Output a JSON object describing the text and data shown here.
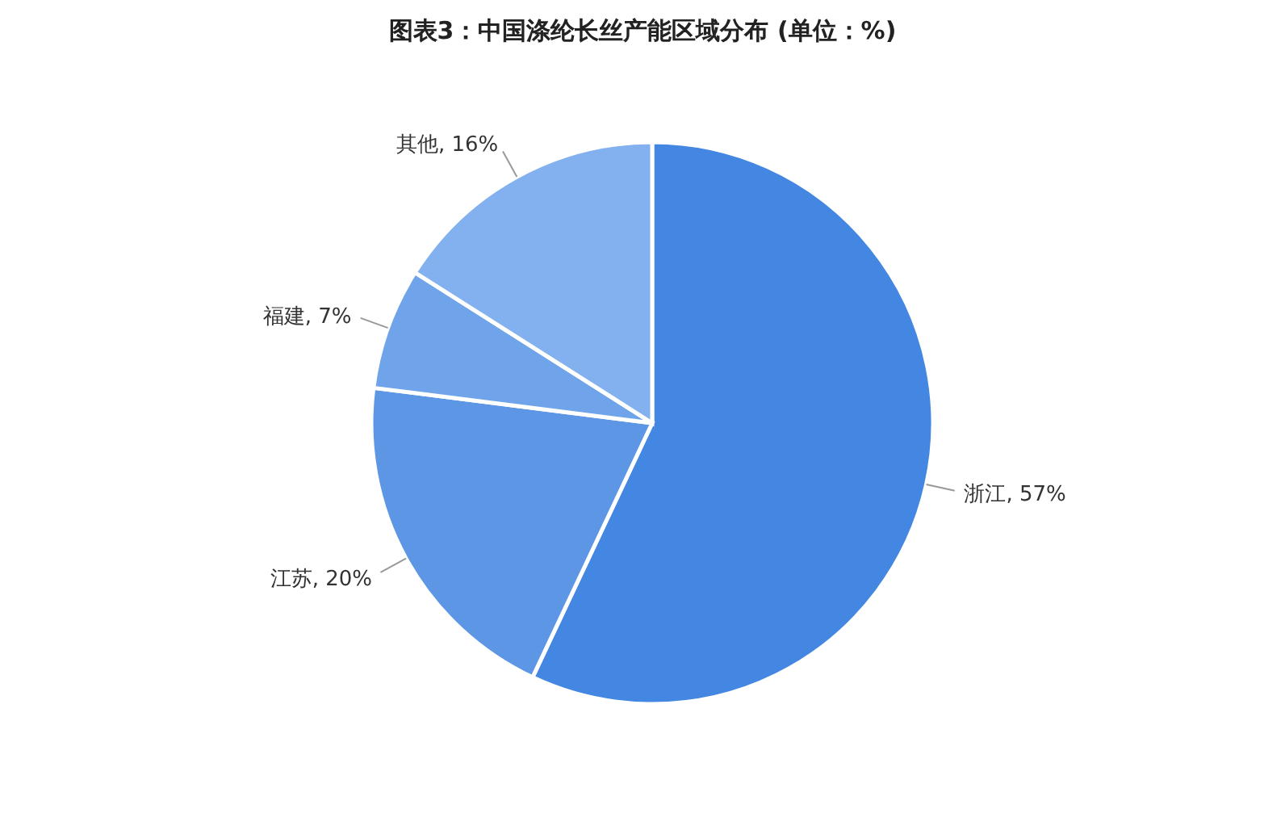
{
  "chart_data": {
    "type": "pie",
    "title": "图表3：中国涤纶长丝产能区域分布 (单位：%)",
    "categories": [
      "浙江",
      "江苏",
      "福建",
      "其他"
    ],
    "values": [
      57,
      20,
      7,
      16
    ],
    "colors": [
      "#4387e2",
      "#5c96e4",
      "#6fa4ea",
      "#83b1ef"
    ],
    "value_labels": [
      "57%",
      "20%",
      "7%",
      "16%"
    ]
  }
}
